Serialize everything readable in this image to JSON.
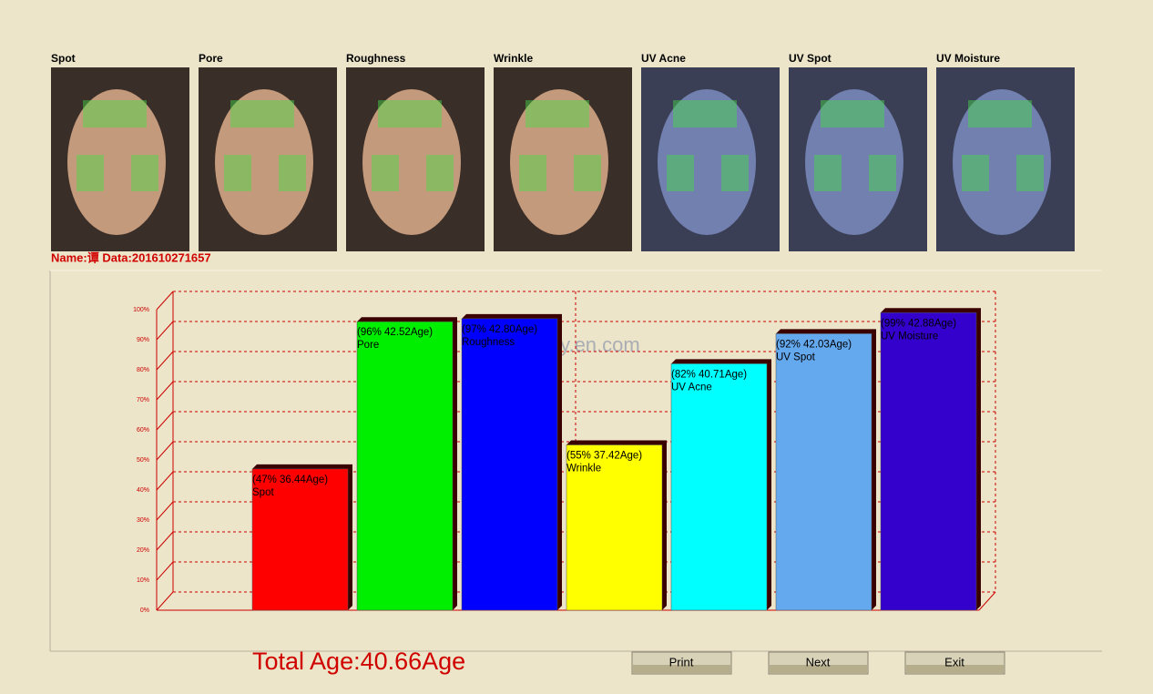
{
  "photos": [
    "Spot",
    "Pore",
    "Roughness",
    "Wrinkle",
    "UV Acne",
    "UV Spot",
    "UV Moisture"
  ],
  "name_line": "Name:谭 Data:201610271657",
  "watermark": "langdy.en.com",
  "chart_data": {
    "type": "bar",
    "categories": [
      "Spot",
      "Pore",
      "Roughness",
      "Wrinkle",
      "UV Acne",
      "UV Spot",
      "UV Moisture"
    ],
    "values": [
      47,
      96,
      97,
      55,
      82,
      92,
      99
    ],
    "value_labels": [
      "(47% 36.44Age)",
      "(96% 42.52Age)",
      "(97% 42.80Age)",
      "(55% 37.42Age)",
      "(82% 40.71Age)",
      "(92% 42.03Age)",
      "(99% 42.88Age)"
    ],
    "colors": [
      "#ff0000",
      "#00ee00",
      "#0000ff",
      "#ffff00",
      "#00ffff",
      "#64a8ee",
      "#3300cc"
    ],
    "ylim": [
      0,
      100
    ],
    "yticks": [
      {
        "value": 0,
        "label": "0%"
      },
      {
        "value": 10,
        "label": "10%"
      },
      {
        "value": 20,
        "label": "20%"
      },
      {
        "value": 30,
        "label": "30%"
      },
      {
        "value": 40,
        "label": "40%"
      },
      {
        "value": 50,
        "label": "50%"
      },
      {
        "value": 60,
        "label": "60%"
      },
      {
        "value": 70,
        "label": "70%"
      },
      {
        "value": 80,
        "label": "80%"
      },
      {
        "value": 90,
        "label": "90%"
      },
      {
        "value": 100,
        "label": "100%"
      }
    ],
    "grid": true
  },
  "total": "Total Age:40.66Age",
  "buttons": [
    "Print",
    "Next",
    "Exit"
  ]
}
